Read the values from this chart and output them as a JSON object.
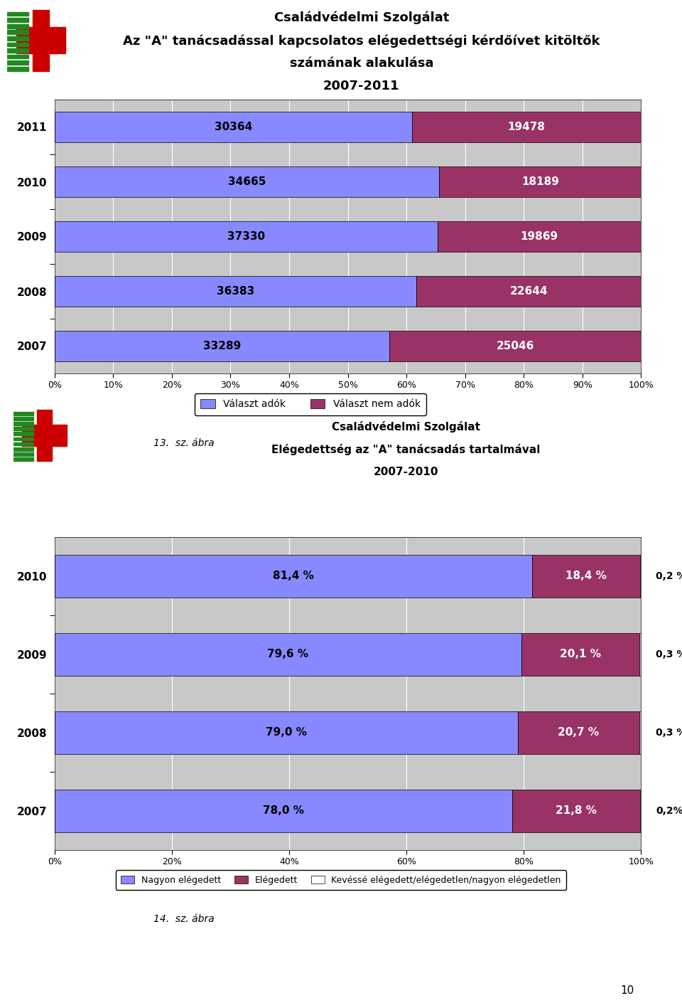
{
  "chart1": {
    "title_lines": [
      "Családvédelmi Szolgálat",
      "Az \"A\" tanácsadással kapcsolatos elégedettségi kérdőívet kitöltők",
      "számának alakulása",
      "2007-2011"
    ],
    "years": [
      "2011",
      "2010",
      "2009",
      "2008",
      "2007"
    ],
    "valaszt_adok": [
      30364,
      34665,
      37330,
      36383,
      33289
    ],
    "valaszt_nem_adok": [
      19478,
      18189,
      19869,
      22644,
      25046
    ],
    "bar_color_adok": "#8888ff",
    "bar_color_nem_adok": "#993366",
    "bar_height": 0.55,
    "xlabel_ticks": [
      0,
      10,
      20,
      30,
      40,
      50,
      60,
      70,
      80,
      90,
      100
    ],
    "xlabel_labels": [
      "0%",
      "10%",
      "20%",
      "30%",
      "40%",
      "50%",
      "60%",
      "70%",
      "80%",
      "90%",
      "100%"
    ],
    "legend_adok": "Választ adók",
    "legend_nem_adok": "Választ nem adók",
    "figure_caption": "13.  sz. ábra",
    "bg_color": "#c8c8c8",
    "bar_edgecolor": "#000000",
    "label_color_adok": "#000000",
    "label_color_nem_adok": "#ffffff"
  },
  "chart2": {
    "title_lines": [
      "Családvédelmi Szolgálat",
      "Elégedettség az \"A\" tanácsadás tartalmával",
      "2007-2010"
    ],
    "years": [
      "2010",
      "2009",
      "2008",
      "2007"
    ],
    "nagyon_elegedett": [
      81.4,
      79.6,
      79.0,
      78.0
    ],
    "elegedett": [
      18.4,
      20.1,
      20.7,
      21.8
    ],
    "keves": [
      0.2,
      0.3,
      0.3,
      0.2
    ],
    "labels_nagyon": [
      "81,4 %",
      "79,6 %",
      "79,0 %",
      "78,0 %"
    ],
    "labels_elegedett": [
      "18,4 %",
      "20,1 %",
      "20,7 %",
      "21,8 %"
    ],
    "labels_keves": [
      "0,2 %",
      "0,3 %",
      "0,3 %",
      "0,2%"
    ],
    "bar_color_nagyon": "#8888ff",
    "bar_color_elegedett": "#993366",
    "bar_color_keves": "#c8c8c8",
    "bar_height": 0.55,
    "legend_nagyon": "Nagyon elégedett",
    "legend_elegedett": "Elégedett",
    "legend_keves": "Kevéssé elégedett/elégedetlen/nagyon elégedetlen",
    "figure_caption": "14.  sz. ábra",
    "bg_color": "#c8c8c8"
  },
  "page_number": "10",
  "bg_white": "#ffffff"
}
